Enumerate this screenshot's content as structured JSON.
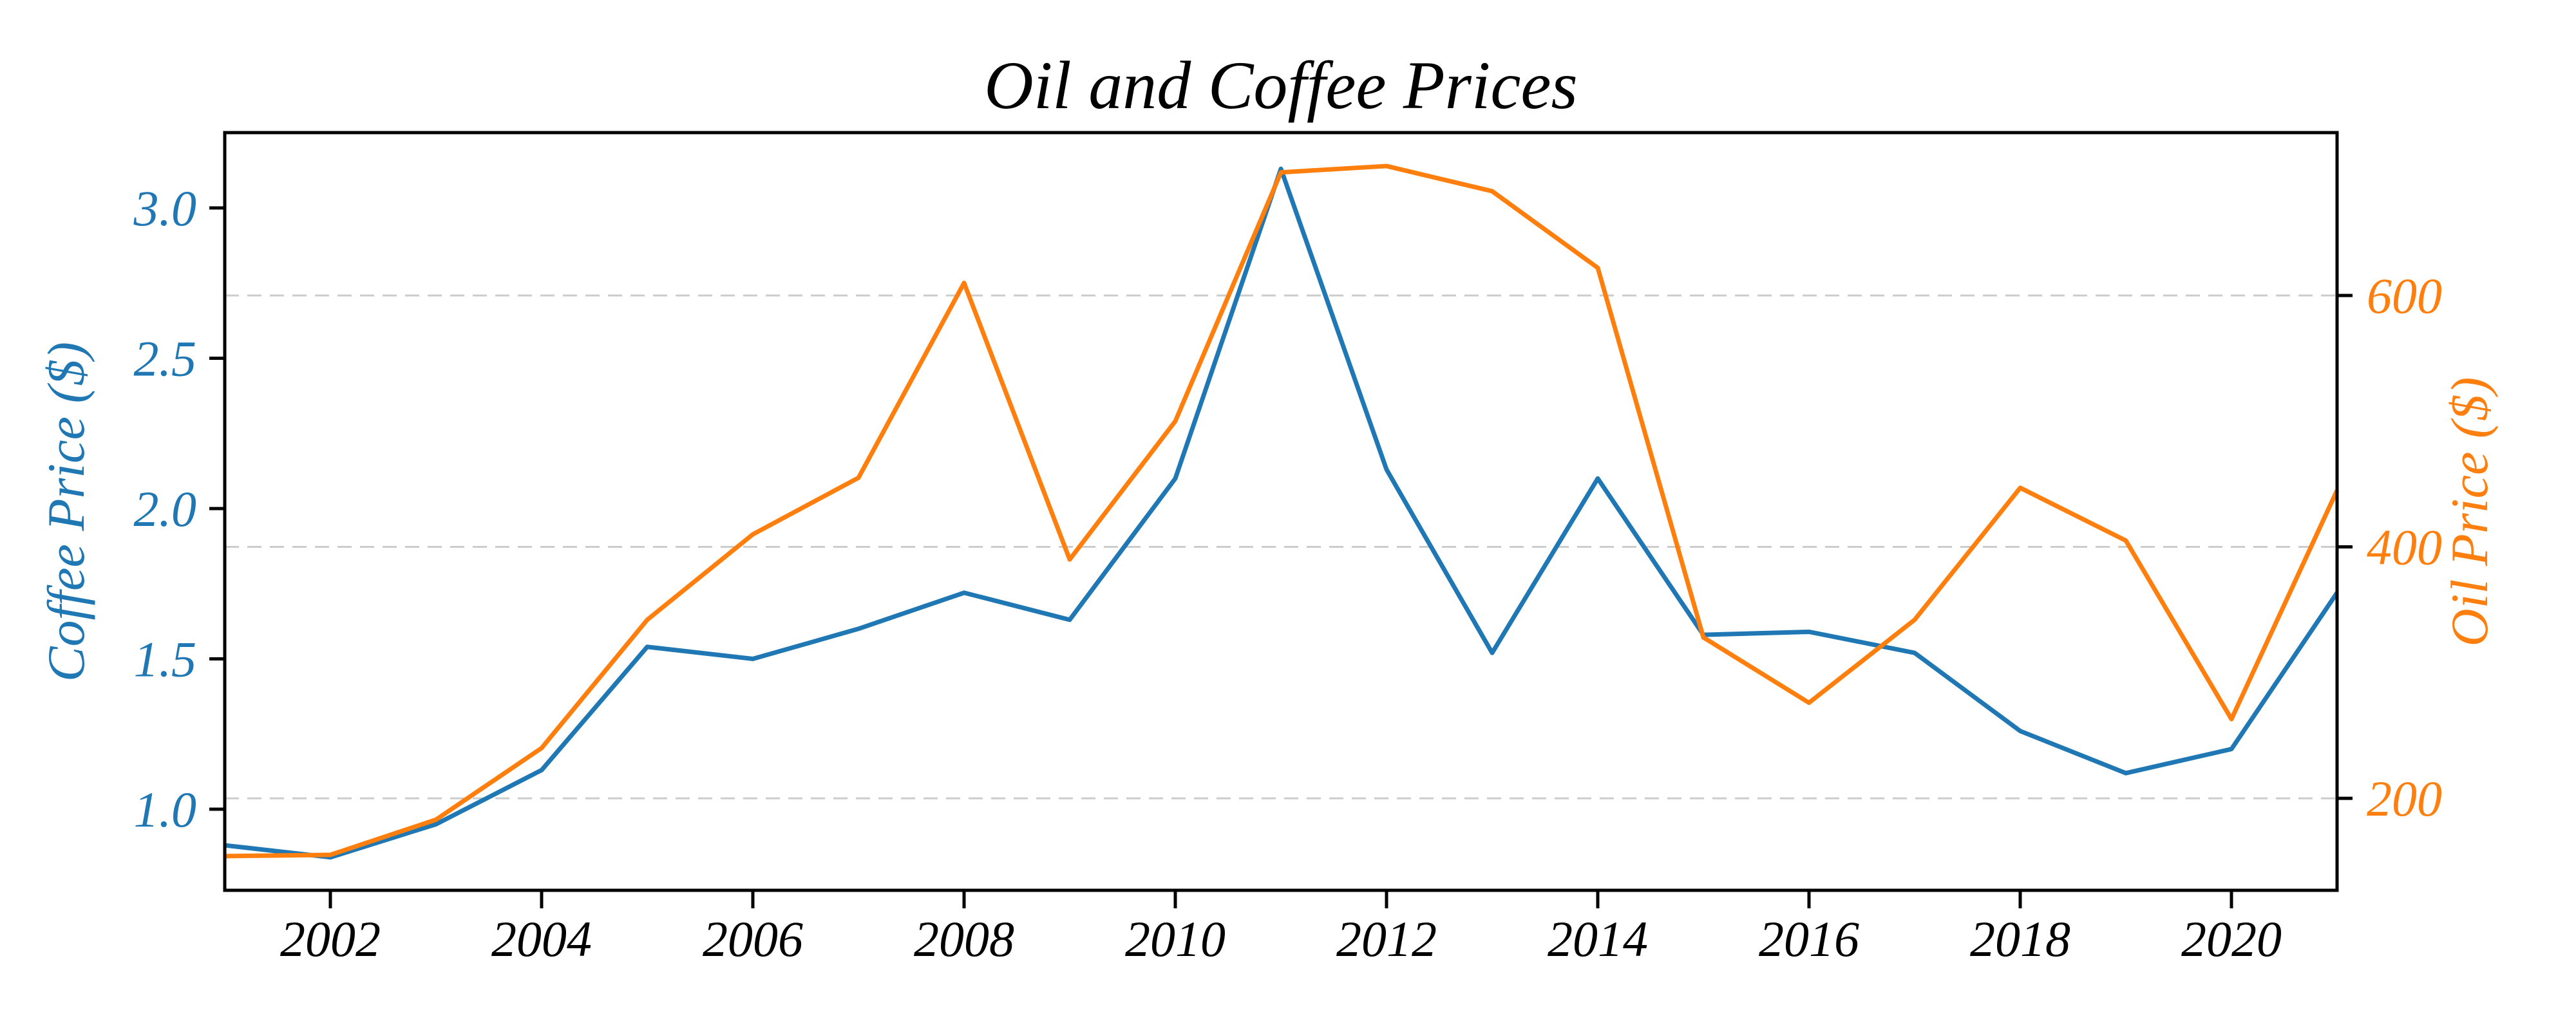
{
  "chart_data": {
    "type": "line",
    "title": "Oil and Coffee Prices",
    "x": [
      2001,
      2002,
      2003,
      2004,
      2005,
      2006,
      2007,
      2008,
      2009,
      2010,
      2011,
      2012,
      2013,
      2014,
      2015,
      2016,
      2017,
      2018,
      2019,
      2020,
      2021
    ],
    "series": [
      {
        "name": "Coffee Price ($)",
        "axis": "left",
        "color": "#1f77b4",
        "values": [
          0.88,
          0.84,
          0.95,
          1.13,
          1.54,
          1.5,
          1.6,
          1.72,
          1.63,
          2.1,
          3.13,
          2.13,
          1.52,
          2.1,
          1.58,
          1.59,
          1.52,
          1.26,
          1.12,
          1.2,
          1.72
        ]
      },
      {
        "name": "Oil Price ($)",
        "axis": "right",
        "color": "#ff7f0e",
        "values": [
          154,
          155,
          183,
          240,
          342,
          410,
          455,
          610,
          390,
          500,
          698,
          703,
          683,
          622,
          328,
          276,
          342,
          447,
          405,
          263,
          445
        ]
      }
    ],
    "xlim": [
      2001,
      2021
    ],
    "xticks": {
      "values": [
        2002,
        2004,
        2006,
        2008,
        2010,
        2012,
        2014,
        2016,
        2018,
        2020
      ],
      "labels": [
        "2002",
        "2004",
        "2006",
        "2008",
        "2010",
        "2012",
        "2014",
        "2016",
        "2018",
        "2020"
      ]
    },
    "left_axis": {
      "label": "Coffee Price ($)",
      "color": "#1f77b4",
      "tick_values": [
        3.0,
        2.5,
        2.0,
        1.5,
        1.0
      ],
      "tick_labels": [
        "3.0",
        "2.5",
        "2.0",
        "1.5",
        "1.0"
      ],
      "lim": [
        0.7302,
        3.2505
      ]
    },
    "right_axis": {
      "label": "Oil Price ($)",
      "color": "#ff7f0e",
      "tick_values": [
        600,
        400,
        200
      ],
      "tick_labels": [
        "600",
        "400",
        "200"
      ],
      "lim": [
        126.8,
        729.6
      ]
    },
    "grid": {
      "aligned_to": "right-axis-ticks",
      "style": "dashed",
      "color": "#cccccc"
    },
    "legend": null,
    "spine_color": "#000000",
    "x_tick_label_color": "#000000"
  }
}
